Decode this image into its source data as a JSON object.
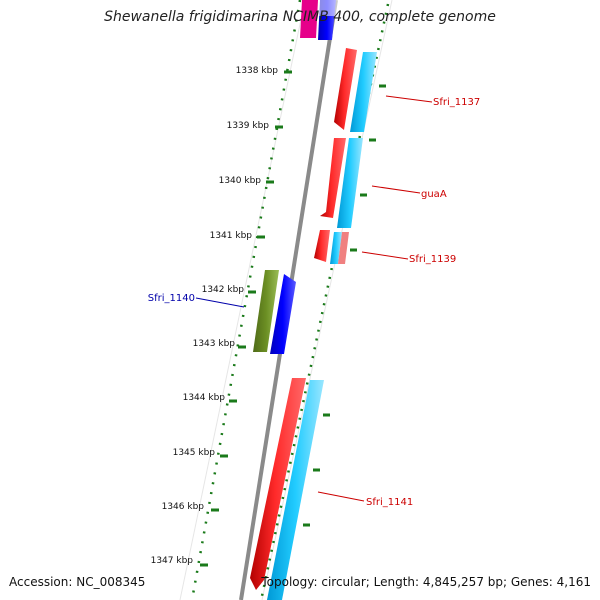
{
  "title": "Shewanella frigidimarina NCIMB 400, complete genome",
  "footer": {
    "accession": "Accession: NC_008345",
    "topology": "Topology: circular; Length: 4,845,257 bp; Genes: 4,161"
  },
  "colors": {
    "background": "#ffffff",
    "backbone": "#808080",
    "forward_cds": "#ff0000",
    "reverse_cds": "#00bfff",
    "ruler_ticks": "#1a7a1a",
    "feature_label_red": "#cc0000",
    "feature_label_blue": "#0000aa",
    "gene_green": "#6b8e23",
    "gene_blue": "#0000ff",
    "gene_magenta": "#e6008a",
    "gene_pink": "#f08080"
  },
  "ruler": {
    "unit": "kbp",
    "ticks": [
      "1338 kbp",
      "1339 kbp",
      "1340 kbp",
      "1341 kbp",
      "1342 kbp",
      "1343 kbp",
      "1344 kbp",
      "1345 kbp",
      "1346 kbp",
      "1347 kbp"
    ]
  },
  "feature_labels": [
    {
      "text": "Sfri_1137",
      "color": "#cc0000"
    },
    {
      "text": "guaA",
      "color": "#cc0000"
    },
    {
      "text": "Sfri_1139",
      "color": "#cc0000"
    },
    {
      "text": "Sfri_1140",
      "color": "#0000aa"
    },
    {
      "text": "Sfri_1141",
      "color": "#cc0000"
    }
  ]
}
